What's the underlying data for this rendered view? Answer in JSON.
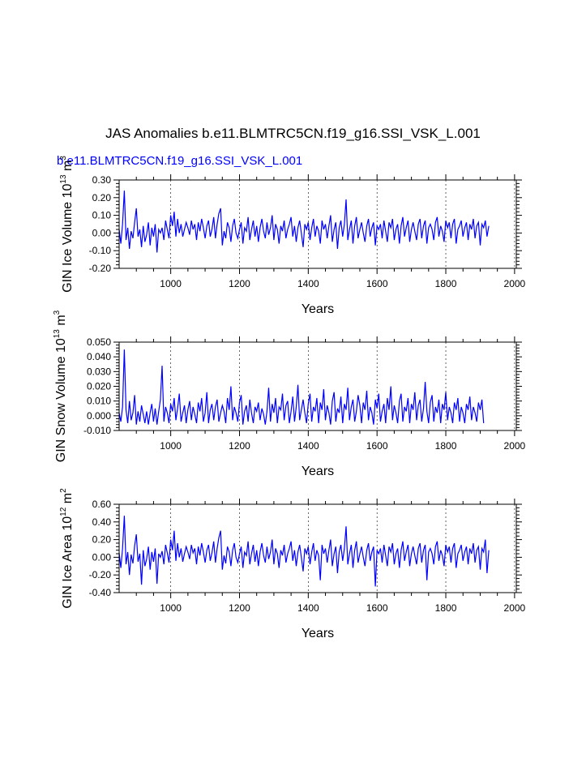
{
  "title": "JAS Anomalies b.e11.BLMTRC5CN.f19_g16.SSI_VSK_L.001",
  "series_label": "b.e11.BLMTRC5CN.f19_g16.SSI_VSK_L.001",
  "line_color": "#0000ff",
  "chart_data": [
    {
      "type": "line",
      "xlabel": "Years",
      "ylabel": "GIN Ice Volume 10",
      "ylabel_exp": "13",
      "ylabel_unit": " m",
      "ylabel_unit_exp": "3",
      "xlim": [
        850,
        2005
      ],
      "ylim": [
        -0.2,
        0.3
      ],
      "x_ticks": [
        1000,
        1200,
        1400,
        1600,
        1800,
        2000
      ],
      "y_ticks": [
        -0.2,
        -0.1,
        0.0,
        0.1,
        0.2,
        0.3
      ],
      "y_tick_labels": [
        "-0.20",
        "-0.10",
        "0.00",
        "0.10",
        "0.20",
        "0.30"
      ],
      "grid": "vertical dashed at major x ticks",
      "series": [
        {
          "x_start": 850,
          "x_step": 5,
          "values": [
            0.02,
            -0.06,
            0.05,
            0.24,
            -0.04,
            0.03,
            -0.09,
            0.01,
            -0.03,
            0.06,
            0.14,
            -0.02,
            0.02,
            -0.08,
            0.04,
            -0.05,
            -0.01,
            0.06,
            -0.07,
            0.03,
            -0.02,
            0.05,
            -0.11,
            0.02,
            0.0,
            0.03,
            -0.04,
            0.07,
            0.02,
            -0.03,
            0.1,
            0.04,
            0.12,
            -0.02,
            0.08,
            0.0,
            0.05,
            -0.02,
            0.02,
            0.06,
            0.03,
            -0.01,
            0.07,
            0.02,
            0.05,
            -0.04,
            0.06,
            0.01,
            0.08,
            0.03,
            -0.03,
            0.04,
            0.07,
            -0.02,
            0.02,
            0.09,
            -0.03,
            0.05,
            0.11,
            0.14,
            -0.07,
            0.01,
            -0.03,
            0.06,
            0.03,
            -0.05,
            0.04,
            0.08,
            0.0,
            -0.03,
            0.02,
            0.06,
            -0.06,
            0.03,
            0.01,
            0.09,
            -0.04,
            0.02,
            0.07,
            -0.02,
            0.04,
            -0.05,
            0.03,
            0.08,
            0.01,
            -0.03,
            0.06,
            -0.01,
            0.03,
            0.1,
            -0.04,
            0.05,
            0.02,
            -0.06,
            0.04,
            0.01,
            0.07,
            -0.03,
            0.02,
            0.05,
            0.09,
            -0.02,
            0.04,
            -0.05,
            0.03,
            0.07,
            0.0,
            -0.08,
            0.05,
            0.02,
            0.06,
            -0.04,
            0.03,
            0.08,
            -0.02,
            0.04,
            0.01,
            -0.06,
            0.07,
            0.02,
            0.05,
            -0.03,
            0.04,
            0.1,
            -0.05,
            0.02,
            0.06,
            -0.09,
            0.03,
            0.07,
            -0.02,
            0.05,
            0.19,
            -0.04,
            0.02,
            0.07,
            -0.06,
            0.04,
            0.09,
            -0.03,
            0.02,
            0.06,
            0.0,
            -0.05,
            0.04,
            0.08,
            -0.02,
            0.03,
            0.06,
            -0.07,
            0.04,
            0.02,
            0.05,
            -0.03,
            0.07,
            0.01,
            -0.05,
            0.06,
            0.03,
            0.08,
            -0.04,
            0.02,
            0.05,
            -0.06,
            0.04,
            0.09,
            -0.02,
            0.03,
            0.07,
            -0.05,
            0.02,
            0.06,
            0.01,
            -0.04,
            0.05,
            0.08,
            -0.03,
            0.04,
            0.07,
            -0.06,
            0.03,
            0.05,
            0.02,
            -0.04,
            0.06,
            0.09,
            -0.02,
            0.04,
            0.01,
            -0.05,
            0.07,
            0.03,
            0.06,
            -0.03,
            0.05,
            0.08,
            -0.06,
            0.02,
            0.04,
            0.07,
            -0.02,
            0.03,
            0.06,
            -0.04,
            0.05,
            0.02,
            0.08,
            -0.03,
            0.04,
            0.06,
            -0.07,
            0.05,
            0.03,
            0.07,
            -0.02,
            0.04
          ]
        }
      ]
    },
    {
      "type": "line",
      "xlabel": "Years",
      "ylabel": "GIN Snow Volume 10",
      "ylabel_exp": "13",
      "ylabel_unit": " m",
      "ylabel_unit_exp": "3",
      "xlim": [
        850,
        2005
      ],
      "ylim": [
        -0.01,
        0.05
      ],
      "x_ticks": [
        1000,
        1200,
        1400,
        1600,
        1800,
        2000
      ],
      "y_ticks": [
        -0.01,
        0.0,
        0.01,
        0.02,
        0.03,
        0.04,
        0.05
      ],
      "y_tick_labels": [
        "-0.010",
        "0.000",
        "0.010",
        "0.020",
        "0.030",
        "0.040",
        "0.050"
      ],
      "grid": "vertical dashed at major x ticks",
      "series": [
        {
          "x_start": 850,
          "x_step": 5,
          "values": [
            0.002,
            -0.004,
            0.006,
            0.045,
            0.004,
            -0.005,
            0.01,
            -0.003,
            0.002,
            0.014,
            -0.006,
            0.003,
            -0.004,
            0.007,
            0.001,
            -0.005,
            0.003,
            -0.006,
            0.002,
            0.008,
            -0.004,
            0.005,
            -0.006,
            0.003,
            0.011,
            0.034,
            -0.004,
            0.006,
            0.002,
            -0.005,
            0.008,
            0.003,
            0.012,
            -0.003,
            0.005,
            0.015,
            -0.004,
            0.002,
            0.007,
            -0.005,
            0.004,
            0.01,
            -0.003,
            0.006,
            0.001,
            -0.005,
            0.009,
            0.003,
            0.012,
            -0.004,
            0.002,
            0.016,
            -0.005,
            0.004,
            0.008,
            -0.003,
            0.006,
            0.011,
            -0.004,
            0.002,
            0.007,
            0.003,
            -0.005,
            0.012,
            0.004,
            0.02,
            -0.003,
            0.006,
            0.002,
            -0.004,
            0.009,
            0.014,
            -0.006,
            0.003,
            0.007,
            -0.004,
            0.011,
            0.002,
            -0.005,
            0.006,
            0.003,
            0.009,
            -0.003,
            0.005,
            0.001,
            -0.006,
            0.003,
            0.019,
            -0.004,
            0.008,
            0.002,
            0.012,
            -0.005,
            0.006,
            0.004,
            0.015,
            -0.003,
            0.007,
            0.01,
            -0.005,
            0.003,
            0.013,
            -0.004,
            0.006,
            0.021,
            -0.003,
            0.004,
            0.011,
            0.002,
            -0.005,
            0.008,
            0.015,
            -0.004,
            0.006,
            0.003,
            0.012,
            -0.005,
            0.009,
            0.004,
            0.018,
            -0.003,
            0.007,
            0.002,
            -0.006,
            0.01,
            0.016,
            -0.004,
            0.005,
            0.002,
            0.013,
            -0.005,
            0.008,
            0.004,
            0.019,
            -0.003,
            0.006,
            0.011,
            -0.004,
            0.003,
            0.014,
            0.007,
            -0.005,
            0.009,
            0.004,
            0.017,
            -0.003,
            0.006,
            0.002,
            -0.006,
            0.011,
            0.005,
            0.015,
            -0.004,
            0.003,
            0.008,
            -0.005,
            0.012,
            0.004,
            0.02,
            -0.003,
            0.007,
            0.002,
            -0.005,
            0.01,
            0.015,
            -0.004,
            0.006,
            0.003,
            0.012,
            -0.005,
            0.008,
            0.004,
            0.016,
            -0.003,
            0.007,
            0.011,
            -0.004,
            0.005,
            0.023,
            0.003,
            -0.005,
            0.009,
            0.014,
            -0.004,
            0.006,
            0.002,
            0.011,
            -0.005,
            0.008,
            0.004,
            0.016,
            -0.003,
            0.006,
            0.002,
            -0.005,
            0.009,
            0.004,
            0.012,
            -0.004,
            0.006,
            0.002,
            -0.005,
            0.008,
            0.004,
            0.013,
            -0.003,
            0.006,
            0.002,
            -0.004,
            0.009,
            0.004,
            0.011,
            -0.005
          ]
        }
      ]
    },
    {
      "type": "line",
      "xlabel": "Years",
      "ylabel": "GIN Ice Area 10",
      "ylabel_exp": "12",
      "ylabel_unit": " m",
      "ylabel_unit_exp": "2",
      "xlim": [
        850,
        2005
      ],
      "ylim": [
        -0.4,
        0.6
      ],
      "x_ticks": [
        1000,
        1200,
        1400,
        1600,
        1800,
        2000
      ],
      "y_ticks": [
        -0.4,
        -0.2,
        0.0,
        0.2,
        0.4,
        0.6
      ],
      "y_tick_labels": [
        "-0.40",
        "-0.20",
        "0.00",
        "0.20",
        "0.40",
        "0.60"
      ],
      "grid": "vertical dashed at major x ticks",
      "series": [
        {
          "x_start": 850,
          "x_step": 5,
          "values": [
            0.05,
            -0.12,
            0.1,
            0.47,
            -0.08,
            0.06,
            -0.2,
            0.03,
            -0.07,
            0.13,
            0.26,
            -0.05,
            0.04,
            -0.31,
            0.08,
            -0.1,
            -0.02,
            0.12,
            -0.14,
            0.06,
            -0.05,
            0.1,
            -0.3,
            0.04,
            0.0,
            0.07,
            -0.08,
            0.14,
            0.05,
            -0.06,
            0.2,
            0.08,
            0.3,
            -0.04,
            0.16,
            0.0,
            0.1,
            -0.05,
            0.04,
            0.12,
            0.06,
            -0.02,
            0.14,
            0.05,
            0.1,
            -0.08,
            0.12,
            0.02,
            0.16,
            0.06,
            -0.06,
            0.08,
            0.14,
            -0.04,
            0.05,
            0.18,
            -0.06,
            0.1,
            0.22,
            0.3,
            -0.14,
            0.02,
            -0.07,
            0.12,
            0.06,
            -0.1,
            0.08,
            0.16,
            0.0,
            -0.06,
            0.04,
            0.12,
            -0.12,
            0.06,
            0.02,
            0.18,
            -0.08,
            0.04,
            0.14,
            -0.05,
            0.08,
            -0.1,
            0.06,
            0.16,
            0.02,
            -0.06,
            0.12,
            -0.02,
            0.06,
            0.2,
            -0.08,
            0.1,
            0.04,
            -0.12,
            0.08,
            0.02,
            0.14,
            -0.06,
            0.04,
            0.1,
            0.18,
            -0.04,
            0.08,
            -0.1,
            0.06,
            0.14,
            0.0,
            -0.16,
            0.1,
            0.04,
            0.12,
            -0.08,
            0.06,
            0.16,
            -0.04,
            0.08,
            0.02,
            -0.26,
            0.14,
            0.04,
            0.1,
            -0.06,
            0.08,
            0.2,
            -0.1,
            0.04,
            0.12,
            -0.18,
            0.06,
            0.14,
            -0.04,
            0.1,
            0.35,
            -0.08,
            0.04,
            0.14,
            -0.12,
            0.08,
            0.18,
            -0.06,
            0.04,
            0.12,
            0.0,
            -0.1,
            0.08,
            0.16,
            -0.04,
            0.06,
            0.12,
            -0.33,
            0.08,
            0.04,
            0.1,
            -0.06,
            0.14,
            0.02,
            -0.1,
            0.12,
            0.06,
            0.16,
            -0.08,
            0.04,
            0.1,
            -0.12,
            0.08,
            0.18,
            -0.04,
            0.06,
            0.14,
            -0.1,
            0.04,
            0.12,
            0.02,
            -0.08,
            0.1,
            0.16,
            -0.06,
            0.08,
            0.14,
            -0.26,
            0.06,
            0.1,
            0.04,
            -0.08,
            0.12,
            0.18,
            -0.04,
            0.08,
            0.02,
            -0.1,
            0.14,
            0.06,
            0.12,
            -0.06,
            0.1,
            0.16,
            -0.12,
            0.04,
            0.08,
            0.14,
            -0.04,
            0.06,
            0.12,
            -0.08,
            0.1,
            0.04,
            0.16,
            -0.06,
            0.08,
            0.12,
            -0.14,
            0.1,
            0.06,
            0.2,
            -0.18,
            0.08
          ]
        }
      ]
    }
  ]
}
